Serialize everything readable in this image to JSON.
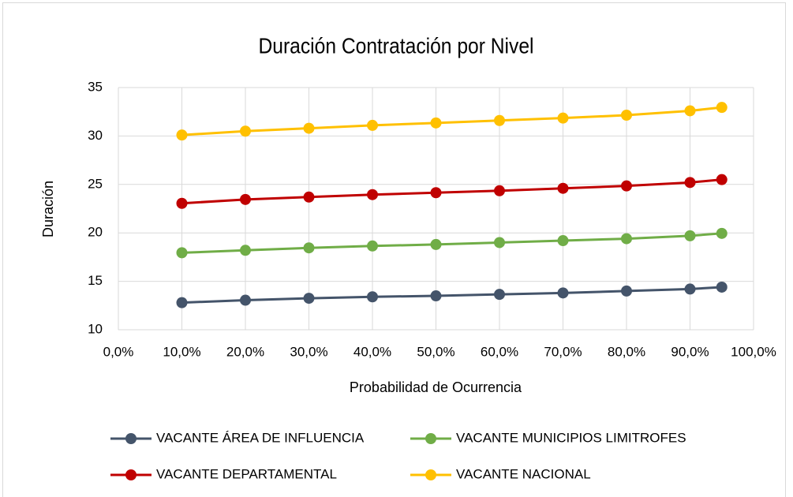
{
  "chart_data": {
    "type": "line",
    "title": "Duración Contratación por Nivel",
    "x_label": "Probabilidad de Ocurrencia",
    "y_label": "Duración",
    "x": [
      10,
      20,
      30,
      40,
      50,
      60,
      70,
      80,
      90,
      95
    ],
    "series": [
      {
        "name": "VACANTE ÁREA DE INFLUENCIA",
        "color": "#44546a",
        "values": [
          12.8,
          13.05,
          13.25,
          13.4,
          13.5,
          13.65,
          13.8,
          14.0,
          14.2,
          14.4
        ]
      },
      {
        "name": "VACANTE MUNICIPIOS LIMITROFES",
        "color": "#70ad47",
        "values": [
          17.95,
          18.2,
          18.45,
          18.65,
          18.8,
          19.0,
          19.2,
          19.4,
          19.7,
          19.95
        ]
      },
      {
        "name": "VACANTE DEPARTAMENTAL",
        "color": "#c00000",
        "values": [
          23.05,
          23.45,
          23.7,
          23.95,
          24.15,
          24.35,
          24.6,
          24.85,
          25.2,
          25.5
        ]
      },
      {
        "name": "VACANTE NACIONAL",
        "color": "#ffc000",
        "values": [
          30.1,
          30.5,
          30.8,
          31.1,
          31.35,
          31.6,
          31.85,
          32.15,
          32.6,
          32.95
        ]
      }
    ],
    "xlim": [
      0,
      100
    ],
    "xticks": [
      {
        "value": 0,
        "label": "0,0%"
      },
      {
        "value": 10,
        "label": "10,0%"
      },
      {
        "value": 20,
        "label": "20,0%"
      },
      {
        "value": 30,
        "label": "30,0%"
      },
      {
        "value": 40,
        "label": "40,0%"
      },
      {
        "value": 50,
        "label": "50,0%"
      },
      {
        "value": 60,
        "label": "60,0%"
      },
      {
        "value": 70,
        "label": "70,0%"
      },
      {
        "value": 80,
        "label": "80,0%"
      },
      {
        "value": 90,
        "label": "90,0%"
      },
      {
        "value": 100,
        "label": "100,0%"
      }
    ],
    "ylim": [
      10,
      35
    ],
    "yticks": [
      10,
      15,
      20,
      25,
      30,
      35
    ],
    "grid": true,
    "legend": "bottom"
  }
}
